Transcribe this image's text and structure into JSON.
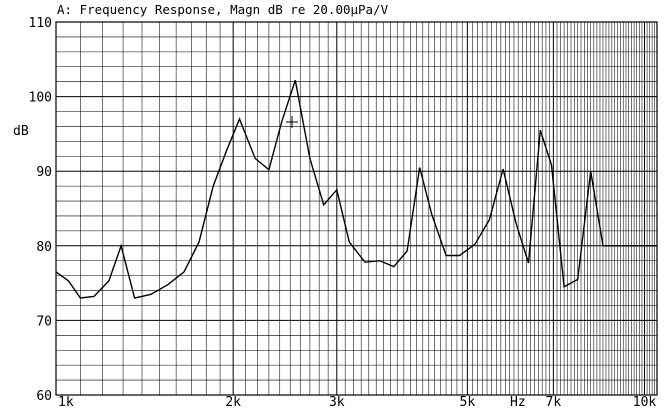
{
  "chart_data": {
    "type": "line",
    "title": "A: Frequency Response, Magn dB re 20.00µPa/V",
    "xlabel": "Hz",
    "ylabel": "dB",
    "xscale": "log",
    "xlim": [
      1000,
      10500
    ],
    "ylim": [
      60,
      110
    ],
    "grid": true,
    "xticks": [
      {
        "value": 1000,
        "label": "1k"
      },
      {
        "value": 2000,
        "label": "2k"
      },
      {
        "value": 3000,
        "label": "3k"
      },
      {
        "value": 5000,
        "label": "5k"
      },
      {
        "value": 7000,
        "label": "7k"
      },
      {
        "value": 10000,
        "label": "10k"
      }
    ],
    "yticks": [
      60,
      70,
      80,
      90,
      100,
      110
    ],
    "series": [
      {
        "x": [
          1000,
          1050,
          1100,
          1160,
          1230,
          1290,
          1360,
          1450,
          1550,
          1650,
          1750,
          1850,
          1950,
          2050,
          2180,
          2300,
          2420,
          2550,
          2700,
          2850,
          3000,
          3150,
          3350,
          3550,
          3750,
          3950,
          4150,
          4350,
          4600,
          4850,
          5150,
          5450,
          5750,
          6050,
          6350,
          6650,
          6950,
          7300,
          7700,
          8100,
          8500,
          8850,
          9300,
          9800,
          10500
        ],
        "y": [
          76.5,
          75.3,
          73.0,
          73.2,
          75.3,
          80.0,
          73.0,
          73.5,
          74.8,
          76.5,
          80.5,
          88.0,
          92.8,
          97.0,
          91.7,
          90.2,
          96.7,
          102.2,
          91.7,
          85.5,
          87.5,
          80.5,
          77.8,
          78.0,
          77.2,
          79.3,
          90.5,
          84.2,
          78.7,
          78.7,
          80.2,
          83.5,
          90.3,
          83.0,
          77.7,
          95.5,
          90.8,
          74.5,
          75.5,
          90.0,
          80.0,
          80.0,
          80.0,
          80.0,
          80.0
        ]
      }
    ]
  }
}
